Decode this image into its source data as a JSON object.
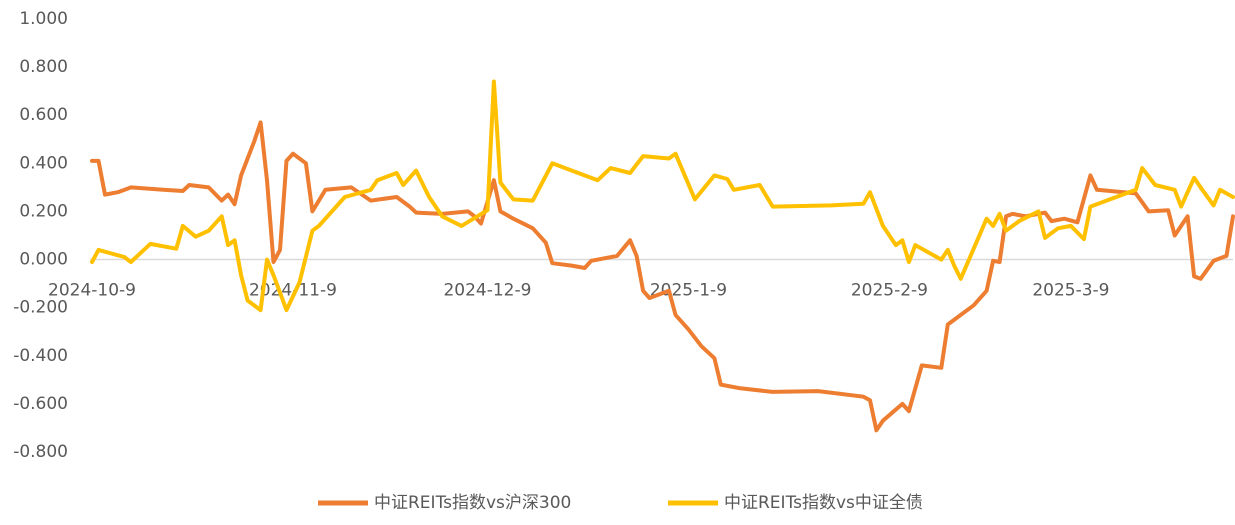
{
  "chart_data": {
    "type": "line",
    "xlim": [
      "2024-10-9",
      "2025-4-3"
    ],
    "xticks": [
      "2024-10-9",
      "2024-11-9",
      "2024-12-9",
      "2025-1-9",
      "2025-2-9",
      "2025-3-9"
    ],
    "ylim": [
      -0.8,
      1.0
    ],
    "yticks": [
      {
        "value": -0.8,
        "label": "-0.800"
      },
      {
        "value": -0.6,
        "label": "-0.600"
      },
      {
        "value": -0.4,
        "label": "-0.400"
      },
      {
        "value": -0.2,
        "label": "-0.200"
      },
      {
        "value": 0,
        "label": "0.000"
      },
      {
        "value": 0.2,
        "label": "0.200"
      },
      {
        "value": 0.4,
        "label": "0.400"
      },
      {
        "value": 0.6,
        "label": "0.600"
      },
      {
        "value": 0.8,
        "label": "0.800"
      },
      {
        "value": 1.0,
        "label": "1.000"
      }
    ],
    "grid": false,
    "legend": "bottom",
    "series": [
      {
        "name": "中证REITs指数vs沪深300",
        "color": "#ed7d31",
        "x": [
          "2024-10-9",
          "2024-10-10",
          "2024-10-11",
          "2024-10-13",
          "2024-10-15",
          "2024-10-20",
          "2024-10-23",
          "2024-10-24",
          "2024-10-27",
          "2024-10-29",
          "2024-10-30",
          "2024-10-31",
          "2024-11-1",
          "2024-11-3",
          "2024-11-4",
          "2024-11-5",
          "2024-11-6",
          "2024-11-7",
          "2024-11-8",
          "2024-11-9",
          "2024-11-11",
          "2024-11-12",
          "2024-11-14",
          "2024-11-18",
          "2024-11-21",
          "2024-11-25",
          "2024-11-27",
          "2024-11-28",
          "2024-12-2",
          "2024-12-6",
          "2024-12-7",
          "2024-12-8",
          "2024-12-10",
          "2024-12-11",
          "2024-12-13",
          "2024-12-16",
          "2024-12-18",
          "2024-12-19",
          "2024-12-22",
          "2024-12-24",
          "2024-12-25",
          "2024-12-29",
          "2024-12-31",
          "2025-1-1",
          "2025-1-2",
          "2025-1-3",
          "2025-1-6",
          "2025-1-7",
          "2025-1-9",
          "2025-1-11",
          "2025-1-13",
          "2025-1-14",
          "2025-1-17",
          "2025-1-22",
          "2025-1-29",
          "2025-2-5",
          "2025-2-6",
          "2025-2-7",
          "2025-2-8",
          "2025-2-11",
          "2025-2-12",
          "2025-2-14",
          "2025-2-17",
          "2025-2-18",
          "2025-2-22",
          "2025-2-24",
          "2025-2-25",
          "2025-2-26",
          "2025-2-27",
          "2025-2-28",
          "2025-3-2",
          "2025-3-5",
          "2025-3-6",
          "2025-3-8",
          "2025-3-10",
          "2025-3-12",
          "2025-3-13",
          "2025-3-19",
          "2025-3-21",
          "2025-3-24",
          "2025-3-25",
          "2025-3-27",
          "2025-3-28",
          "2025-3-29",
          "2025-3-31",
          "2025-4-2",
          "2025-4-3"
        ],
        "values": [
          0.41,
          0.41,
          0.27,
          0.28,
          0.3,
          0.29,
          0.285,
          0.31,
          0.3,
          0.245,
          0.27,
          0.23,
          0.35,
          0.49,
          0.57,
          0.33,
          -0.01,
          0.04,
          0.41,
          0.44,
          0.4,
          0.2,
          0.29,
          0.3,
          0.245,
          0.26,
          0.22,
          0.195,
          0.19,
          0.2,
          0.18,
          0.15,
          0.33,
          0.2,
          0.17,
          0.13,
          0.07,
          -0.015,
          -0.025,
          -0.035,
          -0.005,
          0.015,
          0.08,
          0.015,
          -0.13,
          -0.16,
          -0.13,
          -0.23,
          -0.29,
          -0.36,
          -0.41,
          -0.52,
          -0.535,
          -0.55,
          -0.547,
          -0.57,
          -0.585,
          -0.71,
          -0.67,
          -0.6,
          -0.63,
          -0.44,
          -0.45,
          -0.27,
          -0.19,
          -0.13,
          -0.005,
          -0.01,
          0.18,
          0.19,
          0.18,
          0.195,
          0.16,
          0.17,
          0.155,
          0.35,
          0.29,
          0.275,
          0.2,
          0.205,
          0.1,
          0.18,
          -0.07,
          -0.08,
          -0.005,
          0.015,
          0.18
        ]
      },
      {
        "name": "中证REITs指数vs中证全债",
        "color": "#ffc000",
        "x": [
          "2024-10-9",
          "2024-10-10",
          "2024-10-14",
          "2024-10-15",
          "2024-10-18",
          "2024-10-22",
          "2024-10-23",
          "2024-10-25",
          "2024-10-27",
          "2024-10-29",
          "2024-10-30",
          "2024-10-31",
          "2024-11-1",
          "2024-11-2",
          "2024-11-4",
          "2024-11-5",
          "2024-11-6",
          "2024-11-8",
          "2024-11-10",
          "2024-11-12",
          "2024-11-13",
          "2024-11-17",
          "2024-11-21",
          "2024-11-22",
          "2024-11-25",
          "2024-11-26",
          "2024-11-28",
          "2024-11-30",
          "2024-12-2",
          "2024-12-5",
          "2024-12-9",
          "2024-12-10",
          "2024-12-11",
          "2024-12-13",
          "2024-12-16",
          "2024-12-19",
          "2024-12-23",
          "2024-12-26",
          "2024-12-28",
          "2024-12-31",
          "2025-1-2",
          "2025-1-6",
          "2025-1-7",
          "2025-1-10",
          "2025-1-13",
          "2025-1-15",
          "2025-1-16",
          "2025-1-20",
          "2025-1-22",
          "2025-1-31",
          "2025-2-5",
          "2025-2-6",
          "2025-2-8",
          "2025-2-10",
          "2025-2-11",
          "2025-2-12",
          "2025-2-13",
          "2025-2-17",
          "2025-2-18",
          "2025-2-19",
          "2025-2-20",
          "2025-2-24",
          "2025-2-25",
          "2025-2-26",
          "2025-2-27",
          "2025-3-1",
          "2025-3-4",
          "2025-3-5",
          "2025-3-7",
          "2025-3-9",
          "2025-3-11",
          "2025-3-12",
          "2025-3-19",
          "2025-3-20",
          "2025-3-22",
          "2025-3-25",
          "2025-3-26",
          "2025-3-28",
          "2025-3-29",
          "2025-3-31",
          "2025-4-1",
          "2025-4-3"
        ],
        "values": [
          -0.01,
          0.04,
          0.01,
          -0.01,
          0.065,
          0.045,
          0.14,
          0.095,
          0.12,
          0.18,
          0.06,
          0.08,
          -0.065,
          -0.17,
          -0.21,
          0.0,
          -0.065,
          -0.21,
          -0.095,
          0.12,
          0.14,
          0.26,
          0.29,
          0.33,
          0.36,
          0.31,
          0.37,
          0.26,
          0.18,
          0.14,
          0.205,
          0.74,
          0.32,
          0.25,
          0.245,
          0.4,
          0.36,
          0.33,
          0.38,
          0.36,
          0.43,
          0.42,
          0.44,
          0.25,
          0.35,
          0.335,
          0.29,
          0.31,
          0.22,
          0.225,
          0.232,
          0.28,
          0.14,
          0.06,
          0.08,
          -0.01,
          0.06,
          0.0,
          0.04,
          -0.025,
          -0.08,
          0.17,
          0.14,
          0.19,
          0.12,
          0.16,
          0.2,
          0.09,
          0.13,
          0.14,
          0.085,
          0.22,
          0.29,
          0.38,
          0.31,
          0.29,
          0.22,
          0.34,
          0.3,
          0.225,
          0.29,
          0.26
        ]
      }
    ]
  }
}
